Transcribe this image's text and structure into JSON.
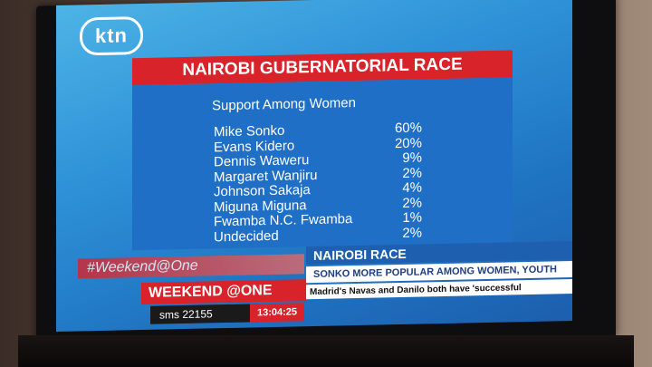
{
  "logo": "ktn",
  "title": "NAIROBI GUBERNATORIAL RACE",
  "subtitle": "Support Among Women",
  "candidates": [
    {
      "name": "Mike Sonko",
      "pct": "60%"
    },
    {
      "name": "Evans Kidero",
      "pct": "20%"
    },
    {
      "name": "Dennis Waweru",
      "pct": "9%"
    },
    {
      "name": "Margaret Wanjiru",
      "pct": "2%"
    },
    {
      "name": "Johnson Sakaja",
      "pct": "4%"
    },
    {
      "name": "Miguna Miguna",
      "pct": "2%"
    },
    {
      "name": "Fwamba N.C. Fwamba",
      "pct": "1%"
    },
    {
      "name": "Undecided",
      "pct": "2%"
    }
  ],
  "ticker": {
    "hashtag": "#Weekend@One",
    "show": "WEEKEND @ONE",
    "sms": "sms 22155",
    "time": "13:04:25",
    "headline": "NAIROBI RACE",
    "subheadline": "SONKO MORE POPULAR AMONG WOMEN, YOUTH",
    "crawl": "Madrid's Navas and Danilo both have 'successful"
  }
}
